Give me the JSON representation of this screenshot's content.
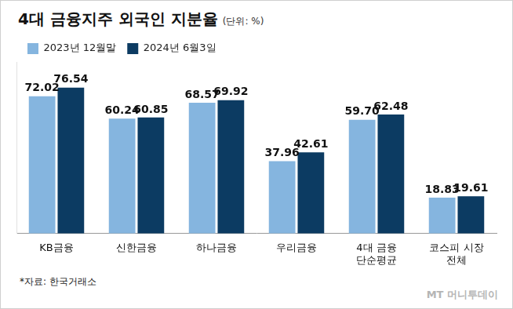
{
  "chart_data": {
    "type": "bar",
    "title": "4대 금융지주 외국인 지분율",
    "subtitle": "(단위: %)",
    "source": "*자료: 한국거래소",
    "credit": "MT 머니투데이",
    "categories": [
      "KB금융",
      "신한금융",
      "하나금융",
      "우리금융",
      "4대 금융\n단순평균",
      "코스피 시장\n전체"
    ],
    "series": [
      {
        "name": "2023년 12월말",
        "color": "#85b5df",
        "values": [
          72.02,
          60.24,
          68.57,
          37.96,
          59.7,
          18.83
        ],
        "value_labels": [
          "72.02",
          "60.24",
          "68.57",
          "37.96",
          "59.70",
          "18.83"
        ]
      },
      {
        "name": "2024년 6월3일",
        "color": "#0c3b62",
        "values": [
          76.54,
          60.85,
          69.92,
          42.61,
          62.48,
          19.61
        ],
        "value_labels": [
          "76.54",
          "60.85",
          "69.92",
          "42.61",
          "62.48",
          "19.61"
        ]
      }
    ],
    "ylim": [
      0,
      90
    ],
    "grid": false,
    "legend": "top-left",
    "data_labels": true,
    "tick_labels": "x"
  }
}
